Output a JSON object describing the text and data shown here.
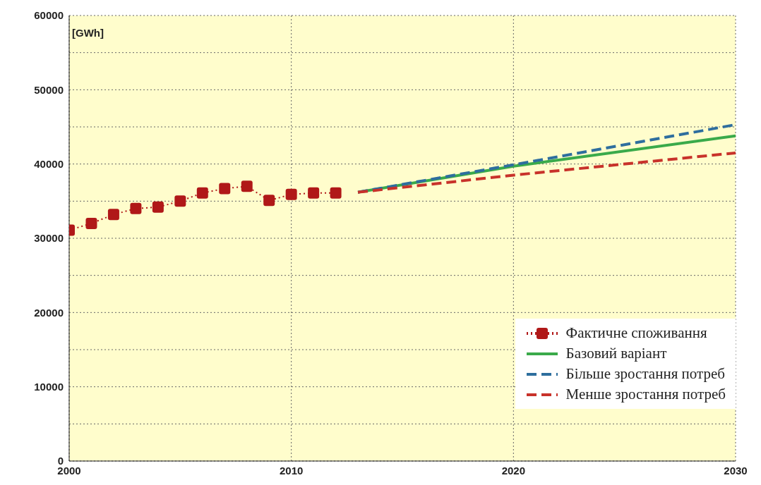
{
  "chart_data": {
    "type": "line",
    "ylabel": "[GWh]",
    "xlim": [
      2000,
      2030
    ],
    "xticks": [
      2000,
      2010,
      2020,
      2030
    ],
    "ylim": [
      0,
      60000
    ],
    "yticks": [
      0,
      {
        "value": 5000,
        "label": null
      },
      10000,
      {
        "value": 15000,
        "label": null
      },
      20000,
      {
        "value": 25000,
        "label": null
      },
      30000,
      {
        "value": 35000,
        "label": null
      },
      40000,
      {
        "value": 45000,
        "label": null
      },
      50000,
      {
        "value": 55000,
        "label": null
      },
      60000
    ],
    "grid": true,
    "legend": "bottom right",
    "series": [
      {
        "name": "Фактичне споживання",
        "color": "#b01818",
        "marker": "square",
        "line_style": "dotted",
        "x": [
          2000,
          2001,
          2002,
          2003,
          2004,
          2005,
          2006,
          2007,
          2008,
          2009,
          2010,
          2011,
          2012
        ],
        "values": [
          31100,
          32000,
          33200,
          34000,
          34200,
          35000,
          36100,
          36700,
          37000,
          35100,
          35900,
          36100,
          36100
        ]
      },
      {
        "name": "Базовий варіант",
        "color": "#3aaa4a",
        "marker": "none",
        "line_style": "solid",
        "x": [
          2013,
          2020,
          2030
        ],
        "values": [
          36200,
          39700,
          43800
        ]
      },
      {
        "name": "Більше зростання потреб",
        "color": "#2e6e9e",
        "marker": "none",
        "line_style": "dashed",
        "x": [
          2013,
          2020,
          2030
        ],
        "values": [
          36200,
          39900,
          45300
        ]
      },
      {
        "name": "Менше зростання потреб",
        "color": "#c8322a",
        "marker": "none",
        "line_style": "dashed",
        "x": [
          2013,
          2020,
          2030
        ],
        "values": [
          36200,
          38500,
          41500
        ]
      }
    ]
  }
}
